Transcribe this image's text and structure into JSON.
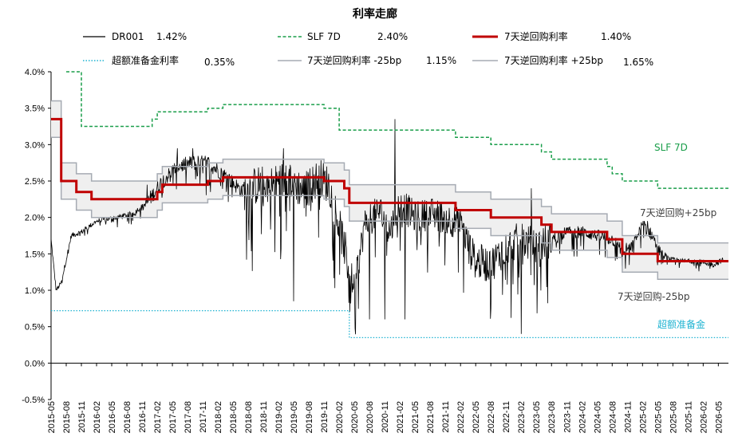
{
  "chart_data": {
    "type": "line",
    "title": "利率走廊",
    "xlabel": "",
    "ylabel": "",
    "ylim": [
      -0.005,
      0.04
    ],
    "yticks": [
      "-0.5%",
      "0.0%",
      "0.5%",
      "1.0%",
      "1.5%",
      "2.0%",
      "2.5%",
      "3.0%",
      "3.5%",
      "4.0%"
    ],
    "x_range": [
      "2015-05",
      "2026-07"
    ],
    "xticks": [
      "2015-05",
      "2015-08",
      "2015-11",
      "2016-02",
      "2016-05",
      "2016-08",
      "2016-11",
      "2017-02",
      "2017-05",
      "2017-08",
      "2017-11",
      "2018-02",
      "2018-05",
      "2018-08",
      "2018-11",
      "2019-02",
      "2019-05",
      "2019-08",
      "2019-11",
      "2020-02",
      "2020-05",
      "2020-08",
      "2020-11",
      "2021-02",
      "2021-05",
      "2021-08",
      "2021-11",
      "2022-02",
      "2022-05",
      "2022-08",
      "2022-11",
      "2023-02",
      "2023-05",
      "2023-08",
      "2023-11",
      "2024-02",
      "2024-05",
      "2024-08",
      "2024-11",
      "2025-02",
      "2025-05",
      "2025-08",
      "2025-11",
      "2026-02",
      "2026-05"
    ],
    "legend": [
      {
        "name": "DR001",
        "value": "1.42%",
        "color": "#000000",
        "style": "solid"
      },
      {
        "name": "SLF 7D",
        "value": "2.40%",
        "color": "#1a9e4a",
        "style": "dashed"
      },
      {
        "name": "7天逆回购利率",
        "value": "1.40%",
        "color": "#c00000",
        "style": "solid-thick"
      },
      {
        "name": "超额准备金利率",
        "value": "0.35%",
        "color": "#1fb3d2",
        "style": "dotted"
      },
      {
        "name": "7天逆回购利率 -25bp",
        "value": "1.15%",
        "color": "#a6abb3",
        "style": "solid"
      },
      {
        "name": "7天逆回购利率 +25bp",
        "value": "1.65%",
        "color": "#a6abb3",
        "style": "solid"
      }
    ],
    "annotations": [
      {
        "text": "SLF 7D",
        "color": "#1a9e4a"
      },
      {
        "text": "7天逆回购+25bp",
        "color": "#404040"
      },
      {
        "text": "7天逆回购-25bp",
        "color": "#404040"
      },
      {
        "text": "超额准备金",
        "color": "#1fb3d2"
      }
    ],
    "series": [
      {
        "name": "7天逆回购利率",
        "steps": [
          [
            "2015-05",
            3.35
          ],
          [
            "2015-07",
            2.5
          ],
          [
            "2015-10",
            2.35
          ],
          [
            "2016-01",
            2.25
          ],
          [
            "2017-02",
            2.35
          ],
          [
            "2017-03",
            2.45
          ],
          [
            "2017-12",
            2.5
          ],
          [
            "2018-03",
            2.55
          ],
          [
            "2019-11",
            2.5
          ],
          [
            "2020-03",
            2.4
          ],
          [
            "2020-04",
            2.2
          ],
          [
            "2022-01",
            2.1
          ],
          [
            "2022-08",
            2.0
          ],
          [
            "2023-06",
            1.9
          ],
          [
            "2023-08",
            1.8
          ],
          [
            "2024-07",
            1.7
          ],
          [
            "2024-10",
            1.5
          ],
          [
            "2025-05",
            1.4
          ],
          [
            "2026-07",
            1.4
          ]
        ]
      },
      {
        "name": "7天逆回购利率 +25bp",
        "steps": [
          [
            "2015-05",
            3.6
          ],
          [
            "2015-07",
            2.75
          ],
          [
            "2015-10",
            2.6
          ],
          [
            "2016-01",
            2.5
          ],
          [
            "2017-02",
            2.6
          ],
          [
            "2017-03",
            2.7
          ],
          [
            "2017-12",
            2.75
          ],
          [
            "2018-03",
            2.8
          ],
          [
            "2019-11",
            2.75
          ],
          [
            "2020-03",
            2.65
          ],
          [
            "2020-04",
            2.45
          ],
          [
            "2022-01",
            2.35
          ],
          [
            "2022-08",
            2.25
          ],
          [
            "2023-06",
            2.15
          ],
          [
            "2023-08",
            2.05
          ],
          [
            "2024-07",
            1.95
          ],
          [
            "2024-10",
            1.75
          ],
          [
            "2025-05",
            1.65
          ],
          [
            "2026-07",
            1.65
          ]
        ]
      },
      {
        "name": "7天逆回购利率 -25bp",
        "steps": [
          [
            "2015-05",
            3.1
          ],
          [
            "2015-07",
            2.25
          ],
          [
            "2015-10",
            2.1
          ],
          [
            "2016-01",
            2.0
          ],
          [
            "2017-02",
            2.1
          ],
          [
            "2017-03",
            2.2
          ],
          [
            "2017-12",
            2.25
          ],
          [
            "2018-03",
            2.3
          ],
          [
            "2019-11",
            2.25
          ],
          [
            "2020-03",
            2.15
          ],
          [
            "2020-04",
            1.95
          ],
          [
            "2022-01",
            1.85
          ],
          [
            "2022-08",
            1.75
          ],
          [
            "2023-06",
            1.65
          ],
          [
            "2023-08",
            1.55
          ],
          [
            "2024-07",
            1.45
          ],
          [
            "2024-10",
            1.25
          ],
          [
            "2025-05",
            1.15
          ],
          [
            "2026-07",
            1.15
          ]
        ]
      },
      {
        "name": "SLF 7D",
        "steps": [
          [
            "2015-08",
            4.0
          ],
          [
            "2015-11",
            3.25
          ],
          [
            "2016-11",
            3.25
          ],
          [
            "2017-01",
            3.35
          ],
          [
            "2017-02",
            3.45
          ],
          [
            "2017-12",
            3.5
          ],
          [
            "2018-03",
            3.55
          ],
          [
            "2019-11",
            3.5
          ],
          [
            "2020-02",
            3.2
          ],
          [
            "2020-04",
            3.2
          ],
          [
            "2022-01",
            3.1
          ],
          [
            "2022-08",
            3.0
          ],
          [
            "2023-06",
            2.9
          ],
          [
            "2023-08",
            2.8
          ],
          [
            "2024-07",
            2.7
          ],
          [
            "2024-08",
            2.6
          ],
          [
            "2024-10",
            2.5
          ],
          [
            "2025-05",
            2.4
          ],
          [
            "2026-07",
            2.4
          ]
        ]
      },
      {
        "name": "超额准备金利率",
        "steps": [
          [
            "2015-05",
            0.72
          ],
          [
            "2020-04",
            0.72
          ],
          [
            "2020-04",
            0.35
          ],
          [
            "2026-07",
            0.35
          ]
        ]
      },
      {
        "name": "DR001",
        "anchors": [
          [
            "2015-05",
            1.7
          ],
          [
            "2015-06",
            1.0
          ],
          [
            "2015-07",
            1.1
          ],
          [
            "2015-09",
            1.75
          ],
          [
            "2015-11",
            1.8
          ],
          [
            "2016-02",
            1.95
          ],
          [
            "2016-06",
            2.0
          ],
          [
            "2016-09",
            2.05
          ],
          [
            "2016-12",
            2.2
          ],
          [
            "2017-03",
            2.5
          ],
          [
            "2017-06",
            2.7
          ],
          [
            "2017-09",
            2.75
          ],
          [
            "2017-12",
            2.75
          ],
          [
            "2018-03",
            2.6
          ],
          [
            "2018-07",
            2.35
          ],
          [
            "2018-10",
            2.45
          ],
          [
            "2019-01",
            2.45
          ],
          [
            "2019-04",
            2.55
          ],
          [
            "2019-07",
            2.35
          ],
          [
            "2019-10",
            2.55
          ],
          [
            "2019-12",
            2.45
          ],
          [
            "2020-03",
            1.6
          ],
          [
            "2020-05",
            1.0
          ],
          [
            "2020-07",
            1.9
          ],
          [
            "2020-10",
            2.1
          ],
          [
            "2020-12",
            1.8
          ],
          [
            "2021-02",
            2.2
          ],
          [
            "2021-05",
            2.0
          ],
          [
            "2021-08",
            2.05
          ],
          [
            "2021-11",
            2.0
          ],
          [
            "2022-02",
            1.9
          ],
          [
            "2022-05",
            1.4
          ],
          [
            "2022-08",
            1.35
          ],
          [
            "2022-11",
            1.6
          ],
          [
            "2023-02",
            1.7
          ],
          [
            "2023-05",
            1.6
          ],
          [
            "2023-08",
            1.7
          ],
          [
            "2023-11",
            1.8
          ],
          [
            "2024-02",
            1.8
          ],
          [
            "2024-05",
            1.75
          ],
          [
            "2024-08",
            1.7
          ],
          [
            "2024-10",
            1.55
          ],
          [
            "2024-12",
            1.6
          ],
          [
            "2025-02",
            1.9
          ],
          [
            "2025-04",
            1.75
          ],
          [
            "2025-06",
            1.45
          ],
          [
            "2025-09",
            1.4
          ],
          [
            "2026-01",
            1.4
          ],
          [
            "2026-04",
            1.35
          ],
          [
            "2026-06",
            1.42
          ]
        ],
        "spikes": [
          [
            "2016-12",
            2.45
          ],
          [
            "2017-06",
            2.95
          ],
          [
            "2017-09",
            2.95
          ],
          [
            "2019-03",
            2.95
          ],
          [
            "2019-05",
            0.85
          ],
          [
            "2019-09",
            0.8
          ],
          [
            "2020-05",
            0.4
          ],
          [
            "2020-08",
            0.6
          ],
          [
            "2020-11",
            0.6
          ],
          [
            "2021-01",
            3.35
          ],
          [
            "2021-03",
            0.6
          ],
          [
            "2022-08",
            0.75
          ],
          [
            "2023-02",
            0.4
          ],
          [
            "2023-04",
            2.4
          ],
          [
            "2024-12",
            2.0
          ],
          [
            "2025-03",
            1.95
          ]
        ]
      }
    ]
  }
}
